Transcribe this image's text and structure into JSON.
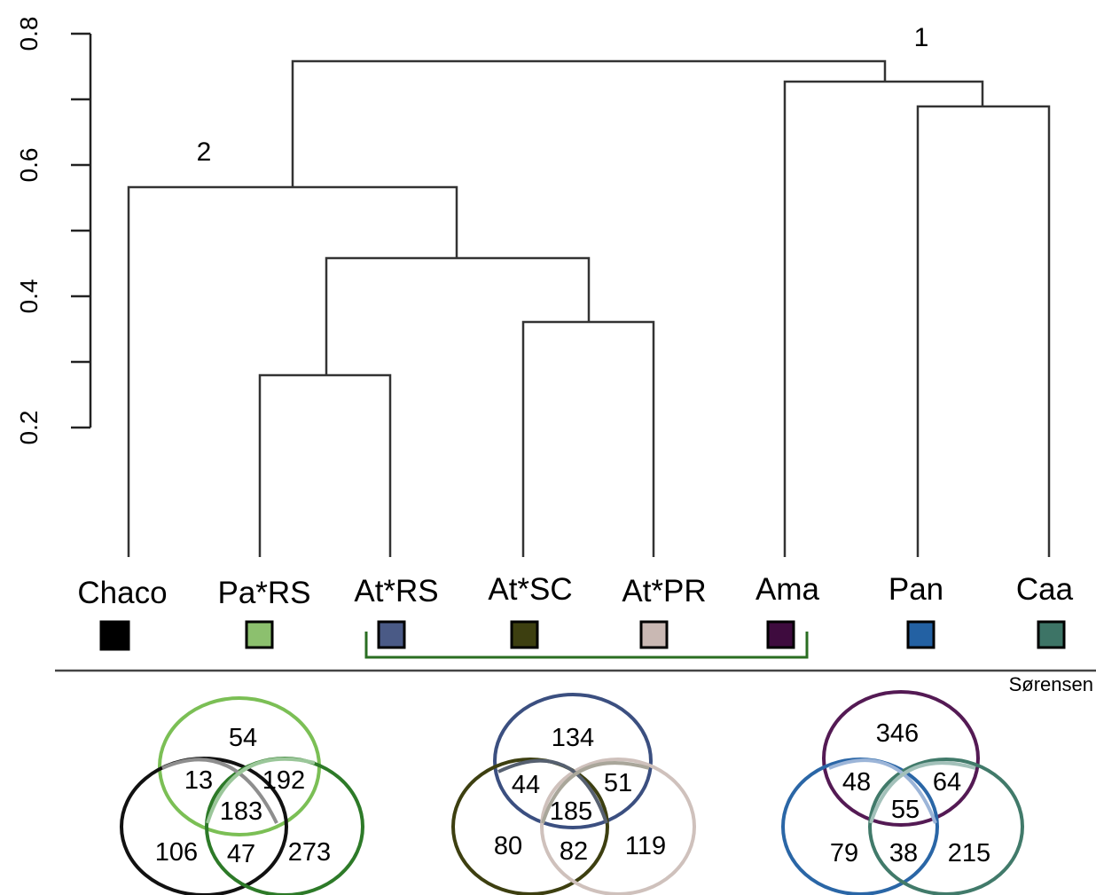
{
  "y_axis": {
    "ticks": [
      {
        "value": 0.2,
        "label": "0.2"
      },
      {
        "value": 0.3,
        "label": ""
      },
      {
        "value": 0.4,
        "label": "0.4"
      },
      {
        "value": 0.5,
        "label": ""
      },
      {
        "value": 0.6,
        "label": "0.6"
      },
      {
        "value": 0.7,
        "label": ""
      },
      {
        "value": 0.8,
        "label": "0.8"
      }
    ]
  },
  "metric_label": "Sørensen",
  "leaves": [
    {
      "label": "Chaco",
      "color": "#000000"
    },
    {
      "label": "Pa*RS",
      "color": "#8cc06e"
    },
    {
      "label": "At*RS",
      "color": "#4a5a86"
    },
    {
      "label": "At*SC",
      "color": "#3d3f10"
    },
    {
      "label": "At*PR",
      "color": "#c9b8b3"
    },
    {
      "label": "Ama",
      "color": "#3e0b3e"
    },
    {
      "label": "Pan",
      "color": "#2361a3"
    },
    {
      "label": "Caa",
      "color": "#3d7466"
    }
  ],
  "cluster_labels": [
    "2",
    "1"
  ],
  "bracket_color": "#2a6e22",
  "venn": [
    {
      "circle_colors": [
        "#7bbf55",
        "#111111",
        "#2d7a28"
      ],
      "overlap_colors": [
        "#8e8e8e",
        "#9bc79a"
      ],
      "counts": [
        "54",
        "13",
        "192",
        "183",
        "106",
        "47",
        "273"
      ]
    },
    {
      "circle_colors": [
        "#3b4f80",
        "#3d3f10",
        "#cfc1bc"
      ],
      "overlap_colors": [
        "#566070",
        "#a9a69a"
      ],
      "counts": [
        "134",
        "44",
        "51",
        "185",
        "80",
        "82",
        "119"
      ]
    },
    {
      "circle_colors": [
        "#541a54",
        "#2a66a6",
        "#417a6a"
      ],
      "overlap_colors": [
        "#9cb5d8",
        "#a3c1ba"
      ],
      "counts": [
        "346",
        "48",
        "64",
        "55",
        "79",
        "38",
        "215"
      ]
    }
  ]
}
